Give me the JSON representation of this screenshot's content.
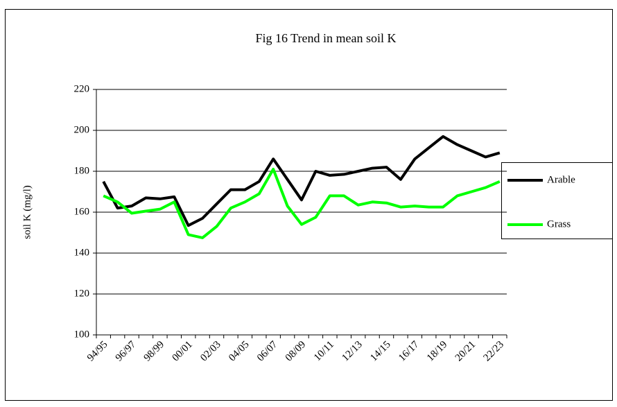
{
  "chart_data": {
    "type": "line",
    "title": "Fig 16 Trend in mean soil K",
    "y_label": "soil K (mg/l)",
    "categories": [
      "94/95",
      null,
      "96/97",
      null,
      "98/99",
      null,
      "00/01",
      null,
      "02/03",
      null,
      "04/05",
      null,
      "06/07",
      null,
      "08/09",
      null,
      "10/11",
      null,
      "12/13",
      null,
      "14/15",
      null,
      "16/17",
      null,
      "18/19",
      null,
      "20/21",
      null,
      "22/23"
    ],
    "series": [
      {
        "name": "Arable",
        "color": "#000000",
        "values": [
          175,
          162,
          163,
          167,
          166.5,
          167.5,
          153.5,
          157,
          164,
          171,
          171,
          175,
          186,
          176,
          166,
          180,
          178,
          178.5,
          180,
          181.5,
          182,
          176,
          186,
          191.5,
          197,
          193,
          190,
          187,
          189
        ]
      },
      {
        "name": "Grass",
        "color": "#00ff00",
        "values": [
          168,
          165,
          159.5,
          160.5,
          161.5,
          165,
          149,
          147.5,
          153,
          162,
          165,
          169,
          181,
          163,
          154,
          157.5,
          168,
          168,
          163.5,
          165,
          164.5,
          162.5,
          163,
          162.5,
          162.5,
          168,
          170,
          172,
          175
        ]
      }
    ],
    "ylim": [
      100,
      220
    ],
    "yticks": [
      100,
      120,
      140,
      160,
      180,
      200,
      220
    ],
    "grid": true,
    "legend": "right"
  }
}
